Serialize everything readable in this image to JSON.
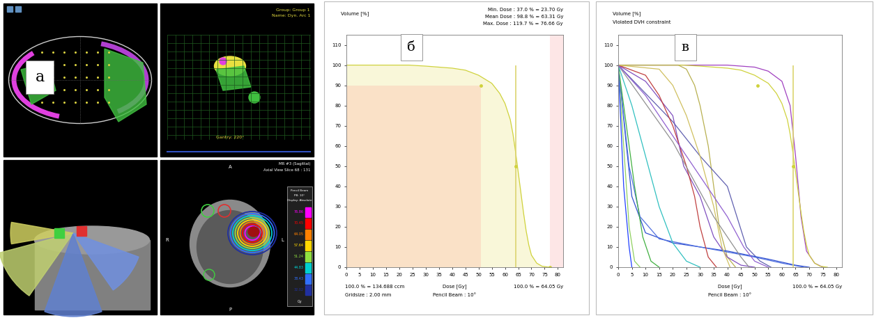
{
  "screenshot": {
    "panel_label": "а",
    "beam_view": {
      "group": "Group: Group 1",
      "name": "Name: Dyn. Arc 1",
      "gantry": "Gantry: 220°"
    },
    "slice_view": {
      "title": "MR #3 (Sagittal)",
      "subtitle": "Axial View Slice 68 : 131",
      "orientation": {
        "top": "A",
        "bottom": "P",
        "left": "R",
        "right": "L"
      },
      "legend_title": [
        "Pencil Beam",
        "PB: 10°",
        "Display: Absolute"
      ],
      "legend_values": [
        76.86,
        70.45,
        64.05,
        57.64,
        51.24,
        44.83,
        38.43,
        32.02
      ],
      "legend_colors": [
        "#ff00ff",
        "#ff0000",
        "#ff8000",
        "#ffd800",
        "#90e040",
        "#00d0d0",
        "#3070ff",
        "#2030a0"
      ],
      "legend_unit": "Gy"
    }
  },
  "chart_data": [
    {
      "type": "line",
      "panel_label": "б",
      "y_label": "Volume [%]",
      "x_label": "Dose [Gy]",
      "annotations": {
        "stats": [
          "Min. Dose : 37.0 % = 23.70 Gy",
          "Mean Dose : 98.8 % = 63.31 Gy",
          "Max. Dose : 119.7 % = 76.66 Gy"
        ],
        "volume_ref": "100.0 % = 134.688 ccm",
        "gridsize": "Gridsize : 2.00 mm",
        "algorithm": "Pencil Beam : 10°",
        "dose_ref": "100.0 % = 64.05 Gy"
      },
      "prescription": 64.05,
      "xlim": [
        0,
        82
      ],
      "ylim": [
        0,
        115
      ],
      "xticks": [
        0,
        5,
        10,
        15,
        20,
        25,
        30,
        35,
        40,
        45,
        50,
        55,
        60,
        65,
        70,
        75,
        80
      ],
      "yticks": [
        0,
        10,
        20,
        30,
        40,
        50,
        60,
        70,
        80,
        90,
        100,
        110
      ],
      "grid": false,
      "series": [
        {
          "color": "#cfd23c",
          "x": [
            0,
            10,
            20,
            23.7,
            30,
            40,
            45,
            50,
            55,
            58,
            60,
            62,
            63,
            64,
            65,
            66,
            67,
            68,
            69,
            70,
            72,
            74,
            76.66
          ],
          "values": [
            100,
            100,
            100,
            100,
            99.5,
            98.5,
            97.5,
            95,
            91,
            86,
            81,
            73,
            66,
            57,
            47,
            37,
            27,
            18,
            11,
            6,
            2,
            0.5,
            0
          ],
          "constraints": [
            {
              "dose": 51,
              "volume": 90
            },
            {
              "dose": 64,
              "volume": 50
            },
            {
              "dose": 77,
              "volume": 0
            }
          ]
        }
      ]
    },
    {
      "type": "line",
      "panel_label": "в",
      "y_label": "Volume [%]",
      "x_label": "Dose [Gy]",
      "annotations": {
        "warning": "Violated DVH constraint",
        "algorithm": "Pencil Beam : 10°",
        "dose_ref": "100.0 % = 64.05 Gy"
      },
      "prescription": 64.05,
      "xlim": [
        0,
        82
      ],
      "ylim": [
        0,
        115
      ],
      "xticks": [
        0,
        5,
        10,
        15,
        20,
        25,
        30,
        35,
        40,
        45,
        50,
        55,
        60,
        65,
        70,
        75,
        80
      ],
      "yticks": [
        0,
        10,
        20,
        30,
        40,
        50,
        60,
        70,
        80,
        90,
        100,
        110
      ],
      "grid": false,
      "series": [
        {
          "color": "#a040c0",
          "x": [
            0,
            40,
            50,
            55,
            60,
            63,
            65,
            67,
            69,
            72,
            75
          ],
          "values": [
            100,
            100,
            99,
            97,
            92,
            80,
            55,
            25,
            8,
            2,
            0
          ]
        },
        {
          "color": "#cfd23c",
          "x": [
            0,
            10,
            20,
            23.7,
            30,
            40,
            45,
            50,
            55,
            58,
            60,
            62,
            63,
            64,
            65,
            66,
            67,
            68,
            69,
            70,
            72,
            74,
            76.66
          ],
          "values": [
            100,
            100,
            100,
            100,
            99.5,
            98.5,
            97.5,
            95,
            91,
            86,
            81,
            73,
            66,
            57,
            47,
            37,
            27,
            18,
            11,
            6,
            2,
            0.5,
            0
          ],
          "constraints": [
            {
              "dose": 51,
              "volume": 90
            },
            {
              "dose": 64,
              "volume": 50
            }
          ]
        },
        {
          "color": "#b8b050",
          "x": [
            0,
            22,
            25,
            28,
            30,
            33,
            35,
            37,
            40,
            43
          ],
          "values": [
            100,
            100,
            98,
            90,
            80,
            60,
            40,
            20,
            5,
            0
          ]
        },
        {
          "color": "#8050c0",
          "x": [
            0,
            10,
            20,
            24,
            30,
            35,
            40,
            45,
            50
          ],
          "values": [
            100,
            92,
            75,
            50,
            35,
            15,
            5,
            1,
            0
          ]
        },
        {
          "color": "#6060b0",
          "x": [
            0,
            20,
            30,
            40,
            47,
            52,
            56
          ],
          "values": [
            100,
            72,
            55,
            40,
            10,
            3,
            0
          ]
        },
        {
          "color": "#3050d0",
          "x": [
            0,
            3,
            5,
            10,
            20,
            40,
            55,
            65,
            70
          ],
          "values": [
            100,
            60,
            35,
            17,
            12,
            8,
            4,
            1,
            0
          ]
        },
        {
          "color": "#5070e0",
          "x": [
            0,
            4,
            8,
            15,
            30,
            50,
            60,
            68
          ],
          "values": [
            100,
            50,
            25,
            14,
            10,
            5,
            2,
            0
          ]
        },
        {
          "color": "#30c0c0",
          "x": [
            0,
            5,
            10,
            15,
            20,
            25,
            30
          ],
          "values": [
            100,
            80,
            55,
            30,
            12,
            3,
            0
          ]
        },
        {
          "color": "#40b040",
          "x": [
            0,
            3,
            6,
            9,
            12,
            15
          ],
          "values": [
            100,
            70,
            40,
            15,
            3,
            0
          ]
        },
        {
          "color": "#90d060",
          "x": [
            0,
            2,
            4,
            6,
            8
          ],
          "values": [
            100,
            60,
            20,
            3,
            0
          ]
        },
        {
          "color": "#2040ff",
          "x": [
            0,
            2,
            4,
            5
          ],
          "values": [
            100,
            40,
            10,
            0
          ]
        },
        {
          "color": "#c04040",
          "x": [
            0,
            10,
            15,
            20,
            25,
            28,
            30,
            33,
            36
          ],
          "values": [
            100,
            95,
            85,
            70,
            50,
            35,
            20,
            5,
            0
          ]
        },
        {
          "color": "#d0c060",
          "x": [
            0,
            15,
            20,
            25,
            30,
            35,
            38,
            41
          ],
          "values": [
            100,
            98,
            90,
            75,
            55,
            30,
            10,
            0
          ]
        },
        {
          "color": "#909090",
          "x": [
            0,
            20,
            35,
            45,
            48
          ],
          "values": [
            100,
            62,
            25,
            5,
            0
          ]
        },
        {
          "color": "#9060d0",
          "x": [
            0,
            10,
            20,
            30,
            40,
            46,
            50,
            55
          ],
          "values": [
            100,
            85,
            65,
            45,
            25,
            10,
            3,
            0
          ]
        }
      ]
    }
  ]
}
